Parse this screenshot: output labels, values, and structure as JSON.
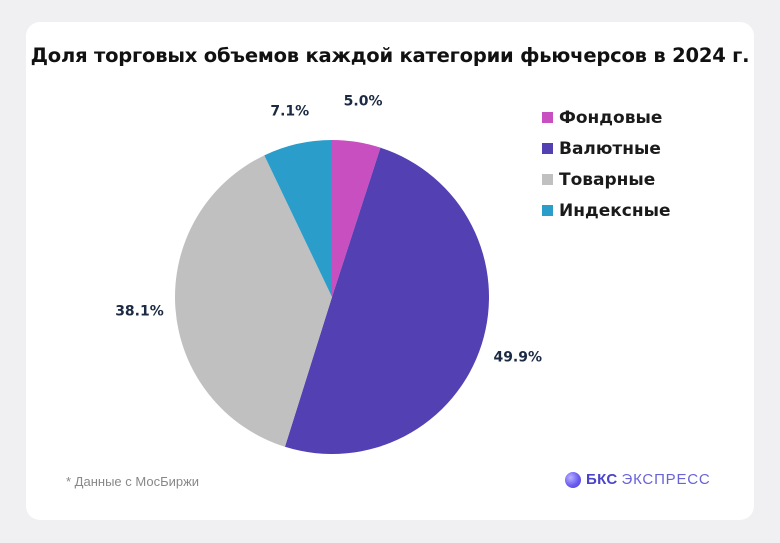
{
  "title": "Доля торговых объемов каждой категории фьючерсов в 2024 г.",
  "footnote": "* Данные с МосБиржи",
  "brand": {
    "strong": "БКС",
    "light": "ЭКСПРЕСС"
  },
  "chart_data": {
    "type": "pie",
    "title": "Доля торговых объемов каждой категории фьючерсов в 2024 г.",
    "start_angle": "12 o'clock",
    "direction": "clockwise",
    "legend_position": "top-right",
    "slices": [
      {
        "name": "Фондовые",
        "value": 5.0,
        "label": "5.0%",
        "color": "#c84fc0"
      },
      {
        "name": "Валютные",
        "value": 49.9,
        "label": "49.9%",
        "color": "#5340b2"
      },
      {
        "name": "Товарные",
        "value": 38.1,
        "label": "38.1%",
        "color": "#c0c0c0"
      },
      {
        "name": "Индексные",
        "value": 7.1,
        "label": "7.1%",
        "color": "#2a9dcb"
      }
    ]
  }
}
